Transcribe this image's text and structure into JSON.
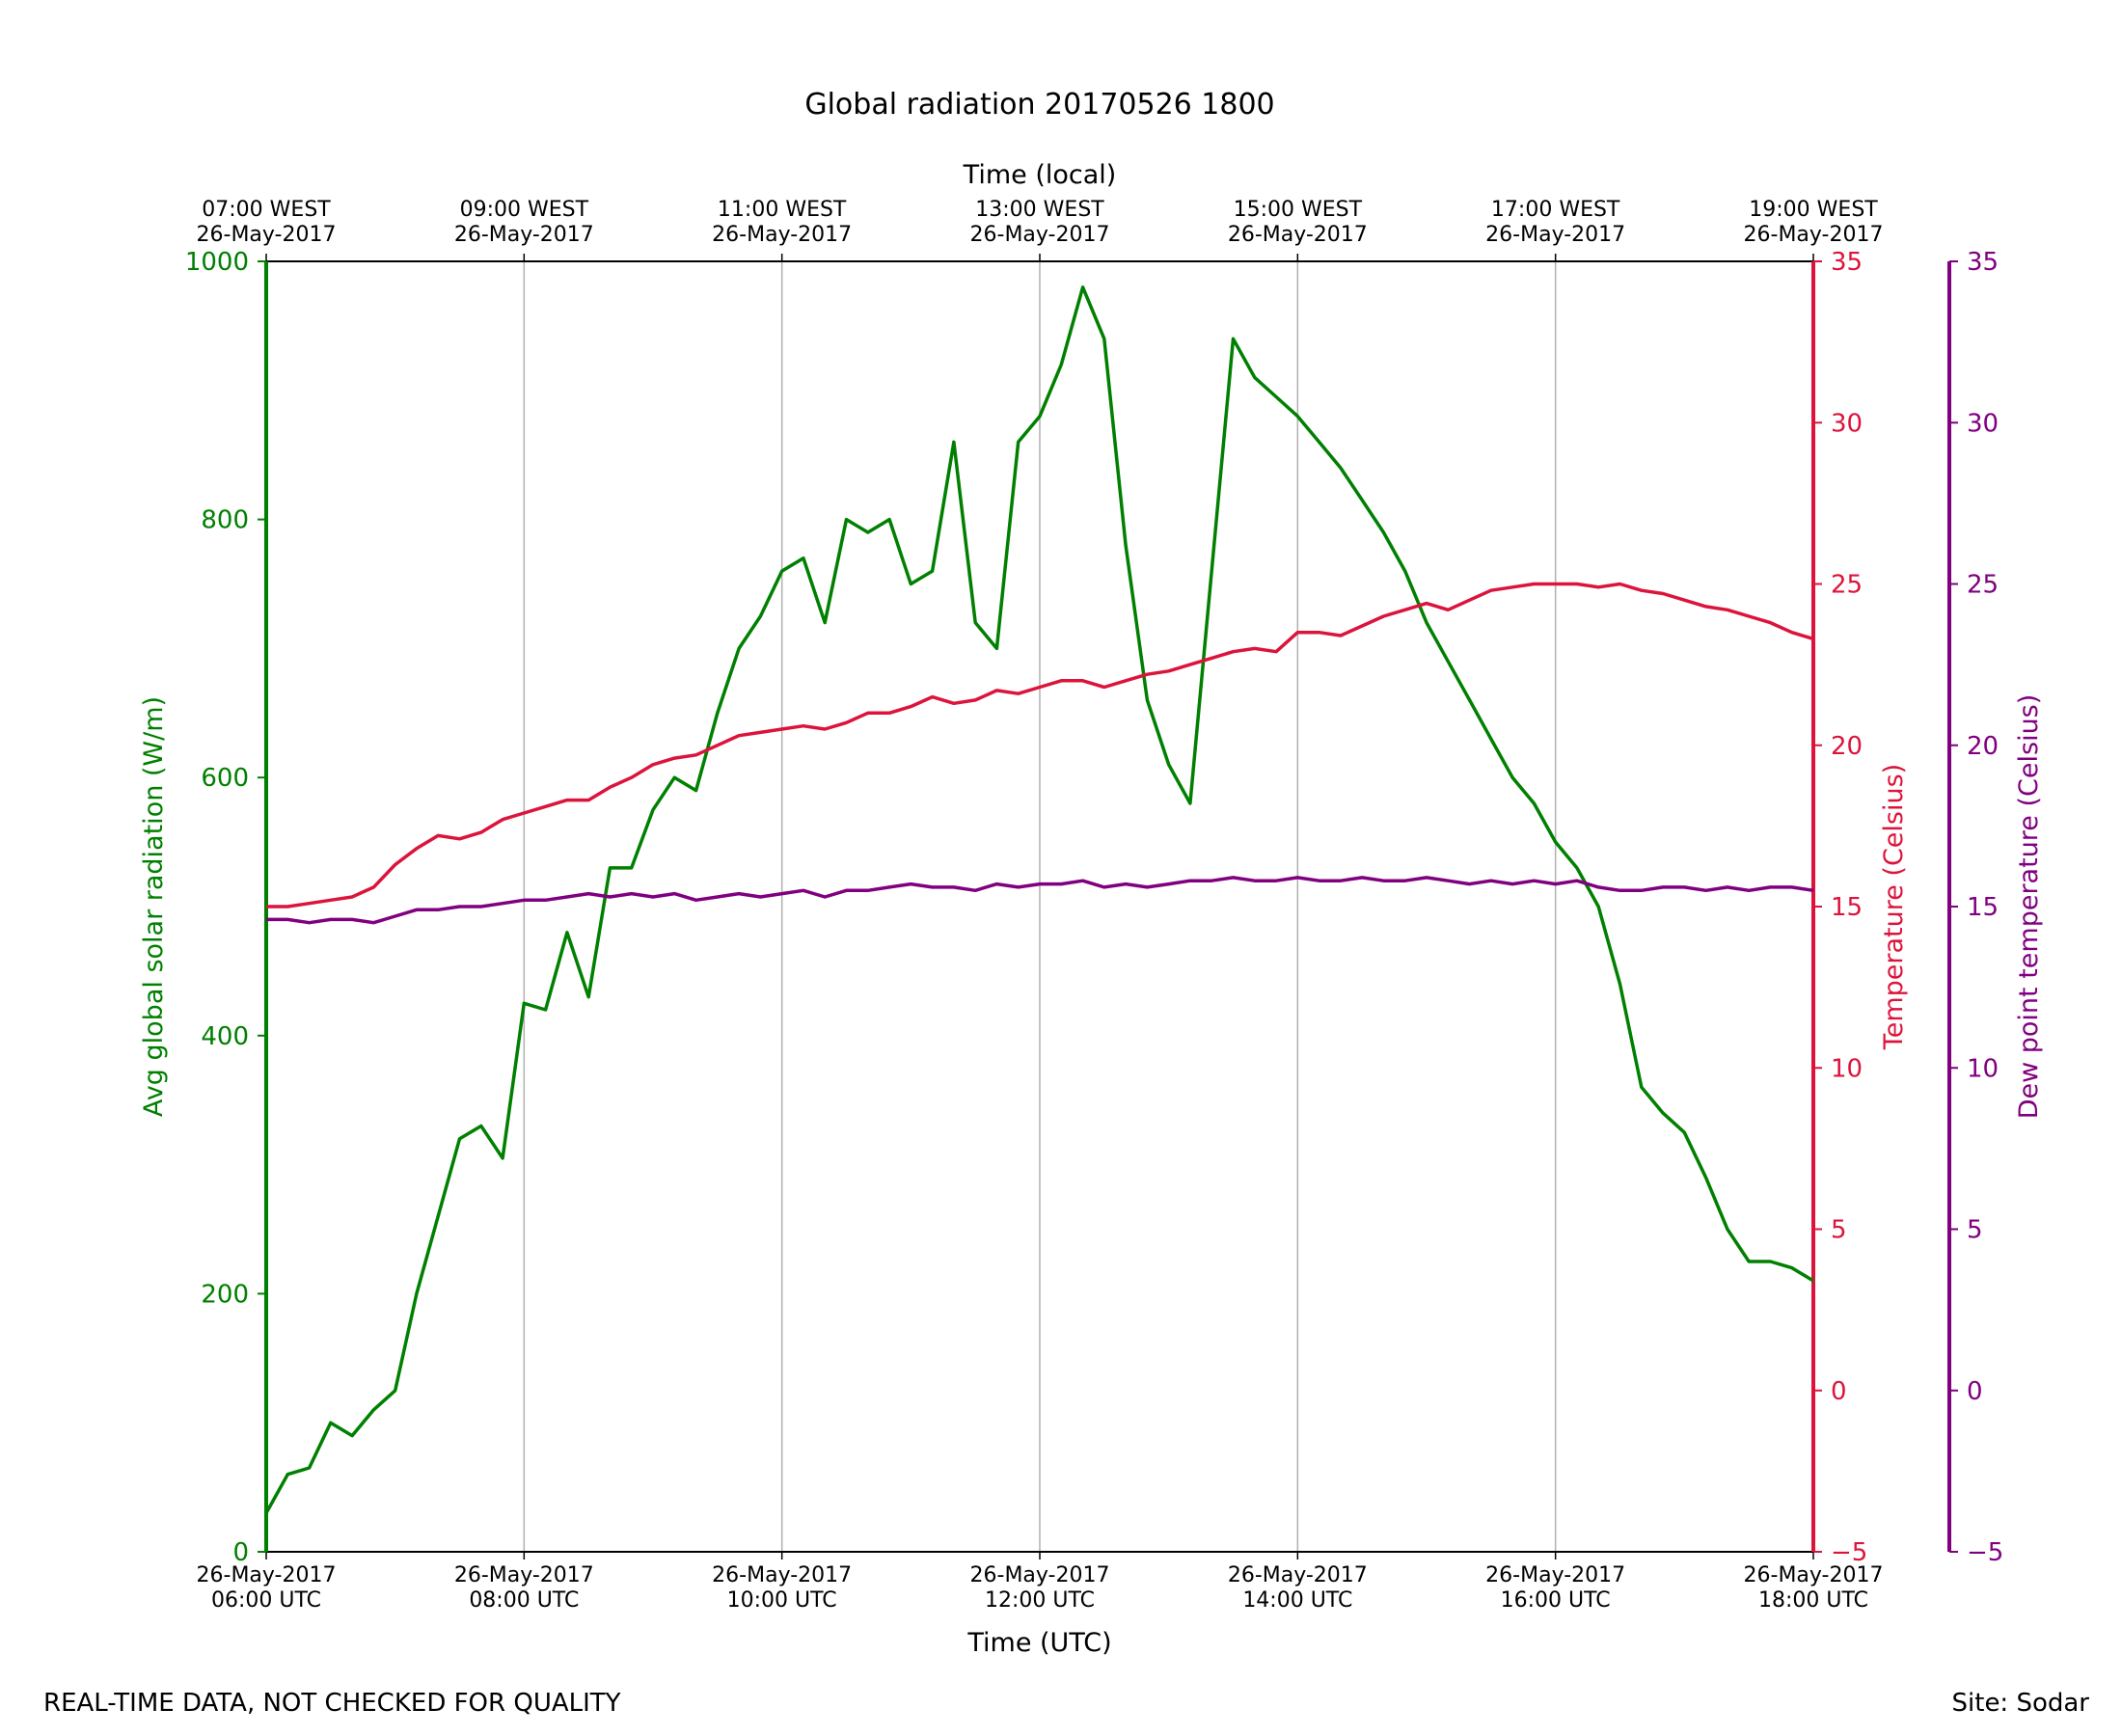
{
  "chart_data": {
    "type": "line",
    "title": "Global radiation 20170526 1800",
    "xlabel": "Time (UTC)",
    "top_xlabel": "Time (local)",
    "ylabel": "Avg global solar radiation (W/m)",
    "y2label": "Temperature (Celsius)",
    "y3label": "Dew point temperature (Celsius)",
    "footer_left": "REAL-TIME DATA, NOT CHECKED FOR QUALITY",
    "footer_right": "Site: Sodar",
    "grid": true,
    "xlim": [
      "2017-05-26 06:00",
      "2017-05-26 18:00"
    ],
    "xticks": [
      {
        "value": "2017-05-26 06:00",
        "label": "26-May-2017\n06:00 UTC"
      },
      {
        "value": "2017-05-26 08:00",
        "label": "26-May-2017\n08:00 UTC"
      },
      {
        "value": "2017-05-26 10:00",
        "label": "26-May-2017\n10:00 UTC"
      },
      {
        "value": "2017-05-26 12:00",
        "label": "26-May-2017\n12:00 UTC"
      },
      {
        "value": "2017-05-26 14:00",
        "label": "26-May-2017\n14:00 UTC"
      },
      {
        "value": "2017-05-26 16:00",
        "label": "26-May-2017\n16:00 UTC"
      },
      {
        "value": "2017-05-26 18:00",
        "label": "26-May-2017\n18:00 UTC"
      }
    ],
    "top_xticks": [
      {
        "value": "2017-05-26 06:00",
        "label": "07:00 WEST\n26-May-2017"
      },
      {
        "value": "2017-05-26 08:00",
        "label": "09:00 WEST\n26-May-2017"
      },
      {
        "value": "2017-05-26 10:00",
        "label": "11:00 WEST\n26-May-2017"
      },
      {
        "value": "2017-05-26 12:00",
        "label": "13:00 WEST\n26-May-2017"
      },
      {
        "value": "2017-05-26 14:00",
        "label": "15:00 WEST\n26-May-2017"
      },
      {
        "value": "2017-05-26 16:00",
        "label": "17:00 WEST\n26-May-2017"
      },
      {
        "value": "2017-05-26 18:00",
        "label": "19:00 WEST\n26-May-2017"
      }
    ],
    "ylim": [
      0,
      1000
    ],
    "yticks": [
      0,
      200,
      400,
      600,
      800,
      1000
    ],
    "y2lim": [
      -5,
      35
    ],
    "y2ticks": [
      {
        "value": -5,
        "label": "−5"
      },
      0,
      5,
      10,
      15,
      20,
      25,
      30,
      35
    ],
    "y3lim": [
      -5,
      35
    ],
    "y3ticks": [
      {
        "value": -5,
        "label": "−5"
      },
      0,
      5,
      10,
      15,
      20,
      25,
      30,
      35
    ],
    "x": [
      "2017-05-26 06:00",
      "2017-05-26 06:10",
      "2017-05-26 06:20",
      "2017-05-26 06:30",
      "2017-05-26 06:40",
      "2017-05-26 06:50",
      "2017-05-26 07:00",
      "2017-05-26 07:10",
      "2017-05-26 07:20",
      "2017-05-26 07:30",
      "2017-05-26 07:40",
      "2017-05-26 07:50",
      "2017-05-26 08:00",
      "2017-05-26 08:10",
      "2017-05-26 08:20",
      "2017-05-26 08:30",
      "2017-05-26 08:40",
      "2017-05-26 08:50",
      "2017-05-26 09:00",
      "2017-05-26 09:10",
      "2017-05-26 09:20",
      "2017-05-26 09:30",
      "2017-05-26 09:40",
      "2017-05-26 09:50",
      "2017-05-26 10:00",
      "2017-05-26 10:10",
      "2017-05-26 10:20",
      "2017-05-26 10:30",
      "2017-05-26 10:40",
      "2017-05-26 10:50",
      "2017-05-26 11:00",
      "2017-05-26 11:10",
      "2017-05-26 11:20",
      "2017-05-26 11:30",
      "2017-05-26 11:40",
      "2017-05-26 11:50",
      "2017-05-26 12:00",
      "2017-05-26 12:10",
      "2017-05-26 12:20",
      "2017-05-26 12:30",
      "2017-05-26 12:40",
      "2017-05-26 12:50",
      "2017-05-26 13:00",
      "2017-05-26 13:10",
      "2017-05-26 13:20",
      "2017-05-26 13:30",
      "2017-05-26 13:40",
      "2017-05-26 13:50",
      "2017-05-26 14:00",
      "2017-05-26 14:10",
      "2017-05-26 14:20",
      "2017-05-26 14:30",
      "2017-05-26 14:40",
      "2017-05-26 14:50",
      "2017-05-26 15:00",
      "2017-05-26 15:10",
      "2017-05-26 15:20",
      "2017-05-26 15:30",
      "2017-05-26 15:40",
      "2017-05-26 15:50",
      "2017-05-26 16:00",
      "2017-05-26 16:10",
      "2017-05-26 16:20",
      "2017-05-26 16:30",
      "2017-05-26 16:40",
      "2017-05-26 16:50",
      "2017-05-26 17:00",
      "2017-05-26 17:10",
      "2017-05-26 17:20",
      "2017-05-26 17:30",
      "2017-05-26 17:40",
      "2017-05-26 17:50",
      "2017-05-26 18:00"
    ],
    "series": [
      {
        "name": "Avg global solar radiation",
        "color": "#008000",
        "axis": "y",
        "values": [
          30,
          60,
          65,
          100,
          90,
          110,
          125,
          200,
          260,
          320,
          330,
          305,
          425,
          420,
          480,
          430,
          530,
          530,
          575,
          600,
          590,
          650,
          700,
          725,
          760,
          770,
          720,
          800,
          790,
          800,
          750,
          760,
          860,
          720,
          700,
          860,
          880,
          920,
          980,
          940,
          780,
          660,
          610,
          580,
          760,
          940,
          910,
          895,
          880,
          860,
          840,
          815,
          790,
          760,
          720,
          690,
          660,
          630,
          600,
          580,
          550,
          530,
          500,
          440,
          360,
          340,
          325,
          290,
          250,
          225,
          225,
          220,
          210
        ]
      },
      {
        "name": "Temperature",
        "color": "#dc143c",
        "axis": "y2",
        "values": [
          15.0,
          15.0,
          15.1,
          15.2,
          15.3,
          15.6,
          16.3,
          16.8,
          17.2,
          17.1,
          17.3,
          17.7,
          17.9,
          18.1,
          18.3,
          18.3,
          18.7,
          19.0,
          19.4,
          19.6,
          19.7,
          20.0,
          20.3,
          20.4,
          20.5,
          20.6,
          20.5,
          20.7,
          21.0,
          21.0,
          21.2,
          21.5,
          21.3,
          21.4,
          21.7,
          21.6,
          21.8,
          22.0,
          22.0,
          21.8,
          22.0,
          22.2,
          22.3,
          22.5,
          22.7,
          22.9,
          23.0,
          22.9,
          23.5,
          23.5,
          23.4,
          23.7,
          24.0,
          24.2,
          24.4,
          24.2,
          24.5,
          24.8,
          24.9,
          25.0,
          25.0,
          25.0,
          24.9,
          25.0,
          24.8,
          24.7,
          24.5,
          24.3,
          24.2,
          24.0,
          23.8,
          23.5,
          23.3
        ]
      },
      {
        "name": "Dew point temperature",
        "color": "#800080",
        "axis": "y3",
        "values": [
          14.6,
          14.6,
          14.5,
          14.6,
          14.6,
          14.5,
          14.7,
          14.9,
          14.9,
          15.0,
          15.0,
          15.1,
          15.2,
          15.2,
          15.3,
          15.4,
          15.3,
          15.4,
          15.3,
          15.4,
          15.2,
          15.3,
          15.4,
          15.3,
          15.4,
          15.5,
          15.3,
          15.5,
          15.5,
          15.6,
          15.7,
          15.6,
          15.6,
          15.5,
          15.7,
          15.6,
          15.7,
          15.7,
          15.8,
          15.6,
          15.7,
          15.6,
          15.7,
          15.8,
          15.8,
          15.9,
          15.8,
          15.8,
          15.9,
          15.8,
          15.8,
          15.9,
          15.8,
          15.8,
          15.9,
          15.8,
          15.7,
          15.8,
          15.7,
          15.8,
          15.7,
          15.8,
          15.6,
          15.5,
          15.5,
          15.6,
          15.6,
          15.5,
          15.6,
          15.5,
          15.6,
          15.6,
          15.5
        ]
      }
    ]
  }
}
